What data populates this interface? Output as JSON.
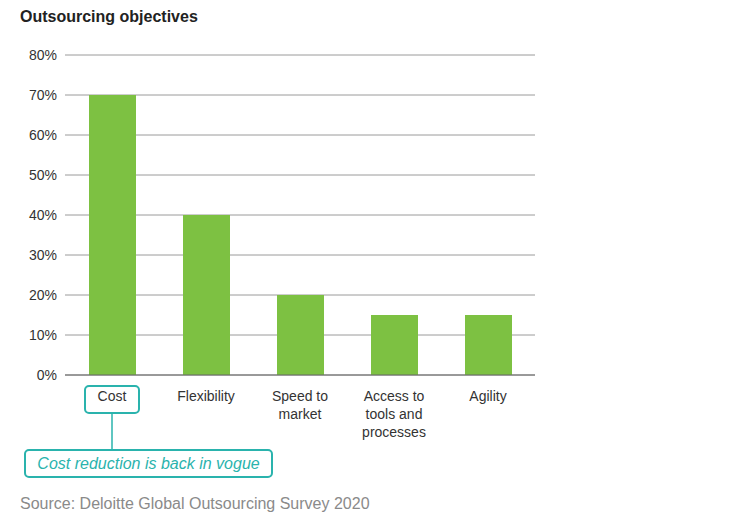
{
  "chart_data": {
    "type": "bar",
    "title": "Outsourcing objectives",
    "categories": [
      "Cost",
      "Flexibility",
      "Speed to market",
      "Access to tools and processes",
      "Agility"
    ],
    "values": [
      70,
      40,
      20,
      15,
      15
    ],
    "color": "#7dc142",
    "ylim": [
      0,
      80
    ],
    "yticks": [
      {
        "value": 0,
        "label": "0%"
      },
      {
        "value": 10,
        "label": "10%"
      },
      {
        "value": 20,
        "label": "20%"
      },
      {
        "value": 30,
        "label": "30%"
      },
      {
        "value": 40,
        "label": "40%"
      },
      {
        "value": 50,
        "label": "50%"
      },
      {
        "value": 60,
        "label": "60%"
      },
      {
        "value": 70,
        "label": "70%"
      },
      {
        "value": 80,
        "label": "80%"
      }
    ],
    "grid": true,
    "annotation": "Cost reduction is back in vogue",
    "source": "Source: Deloitte Global Outsourcing Survey 2020"
  }
}
